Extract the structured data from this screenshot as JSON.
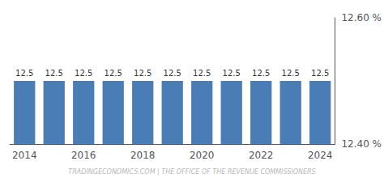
{
  "chart_data": {
    "type": "bar",
    "categories": [
      2014,
      null,
      2016,
      null,
      2018,
      null,
      2020,
      null,
      2022,
      null,
      2024
    ],
    "values": [
      12.5,
      12.5,
      12.5,
      12.5,
      12.5,
      12.5,
      12.5,
      12.5,
      12.5,
      12.5,
      12.5
    ],
    "color": "#4a7db5",
    "ylim": [
      12.4,
      12.6
    ],
    "yticks": [
      {
        "value": 12.4,
        "label": "12.40 %"
      },
      {
        "value": 12.6,
        "label": "12.60 %"
      }
    ],
    "data_labels": true,
    "grid": false,
    "annotation": "TRADINGECONOMICS.COM | THE OFFICE OF THE REVENUE COMMISSIONERS"
  }
}
